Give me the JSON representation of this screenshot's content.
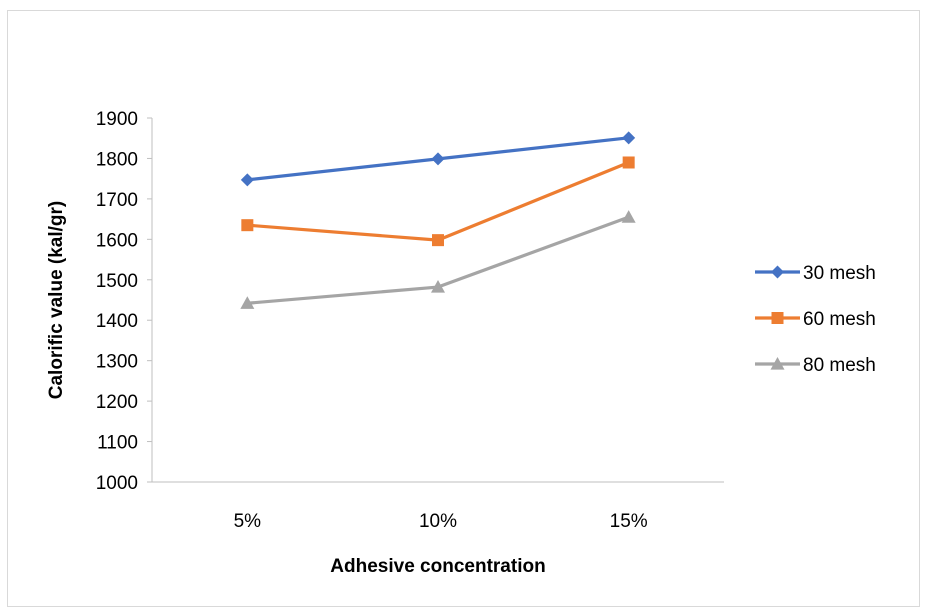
{
  "chart_data": {
    "type": "line",
    "categories": [
      "5%",
      "10%",
      "15%"
    ],
    "series": [
      {
        "name": "30 mesh",
        "values": [
          1747,
          1799,
          1851
        ],
        "color": "#4472c4",
        "marker": "diamond"
      },
      {
        "name": "60 mesh",
        "values": [
          1635,
          1598,
          1790
        ],
        "color": "#ed7d31",
        "marker": "square"
      },
      {
        "name": "80 mesh",
        "values": [
          1442,
          1482,
          1655
        ],
        "color": "#a5a5a5",
        "marker": "triangle"
      }
    ],
    "title": "",
    "xlabel": "Adhesive concentration",
    "ylabel": "Calorific value (kal/gr)",
    "ylim": [
      1000,
      1900
    ],
    "yticks": [
      1000,
      1100,
      1200,
      1300,
      1400,
      1500,
      1600,
      1700,
      1800,
      1900
    ],
    "grid": false,
    "legend_position": "right"
  }
}
